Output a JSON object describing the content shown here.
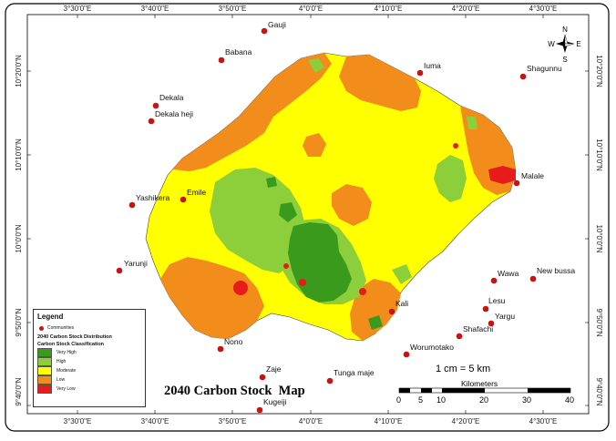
{
  "title": "2040 Carbon Stock  Map",
  "scale": {
    "text": "1 cm = 5 km",
    "unit_label": "Kilometers",
    "ticks": [
      "0",
      "5",
      "10",
      "20",
      "30",
      "40"
    ]
  },
  "north_arrow": {
    "n": "N",
    "s": "S",
    "e": "E",
    "w": "W"
  },
  "longitude_labels": [
    "3°30'0\"E",
    "3°40'0\"E",
    "3°50'0\"E",
    "4°0'0\"E",
    "4°10'0\"E",
    "4°20'0\"E",
    "4°30'0\"E"
  ],
  "latitude_labels": [
    "10°20'0\"N",
    "10°10'0\"N",
    "10°0'0\"N",
    "9°50'0\"N",
    "9°40'0\"N"
  ],
  "legend": {
    "title": "Legend",
    "communities_label": "Communities",
    "subtitle": "2040 Carbon Stock Distribution",
    "classification_title": "Carbon Stock Classification",
    "classes": [
      {
        "label": "Very High",
        "color": "#3a9a1c"
      },
      {
        "label": "High",
        "color": "#8ccf3a"
      },
      {
        "label": "Moderate",
        "color": "#ffff00"
      },
      {
        "label": "Low",
        "color": "#f28c1a"
      },
      {
        "label": "Very Low",
        "color": "#e81b1b"
      }
    ]
  },
  "communities": [
    "Gauji",
    "Babana",
    "Iuma",
    "Shagunnu",
    "Dekala",
    "Dekala heji",
    "Malale",
    "Yashikera",
    "Emile",
    "Yarunji",
    "Wawa",
    "New bussa",
    "Lesu",
    "Kali",
    "Yargu",
    "Shafachi",
    "Nono",
    "Worumotako",
    "Zaje",
    "Tunga maje",
    "Kugeiji"
  ],
  "colors": {
    "community_dot": "#cc1111",
    "background": "#ffffff"
  }
}
